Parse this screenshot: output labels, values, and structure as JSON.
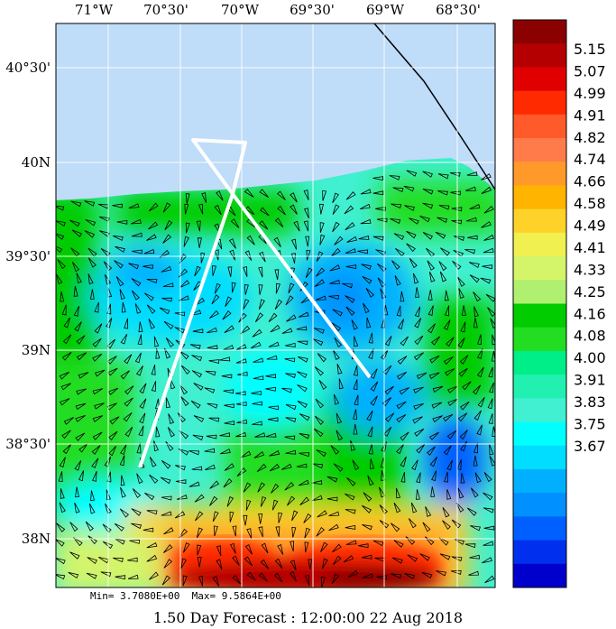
{
  "lon_labels": [
    "71°W",
    "70°30'",
    "70°W",
    "69°30'",
    "69°W",
    "68°30'"
  ],
  "lat_labels": [
    "40°30'",
    "40N",
    "39°30'",
    "39N",
    "38°30'",
    "38N"
  ],
  "colorbar": {
    "labels": [
      "5.15",
      "5.07",
      "4.99",
      "4.91",
      "4.82",
      "4.74",
      "4.66",
      "4.58",
      "4.49",
      "4.41",
      "4.33",
      "4.25",
      "4.16",
      "4.08",
      "4.00",
      "3.91",
      "3.83",
      "3.75",
      "3.67"
    ],
    "colors": [
      "#8b0000",
      "#b40000",
      "#e00000",
      "#ff2a00",
      "#ff5a2a",
      "#ff7b4a",
      "#ff9a2a",
      "#ffb400",
      "#ffd22a",
      "#f0f050",
      "#d4f46a",
      "#b0f070",
      "#00cc00",
      "#22dd22",
      "#00ee88",
      "#22f0b0",
      "#40f0d0",
      "#00ffff",
      "#00ddff",
      "#00b0ff",
      "#0090ff",
      "#0060ff",
      "#0030ee",
      "#0000cc"
    ]
  },
  "stats": {
    "min": "Min= 3.7080E+00",
    "max": "Max= 9.5864E+00"
  },
  "footer": "1.50 Day Forecast : 12:00:00  22 Aug 2018"
}
